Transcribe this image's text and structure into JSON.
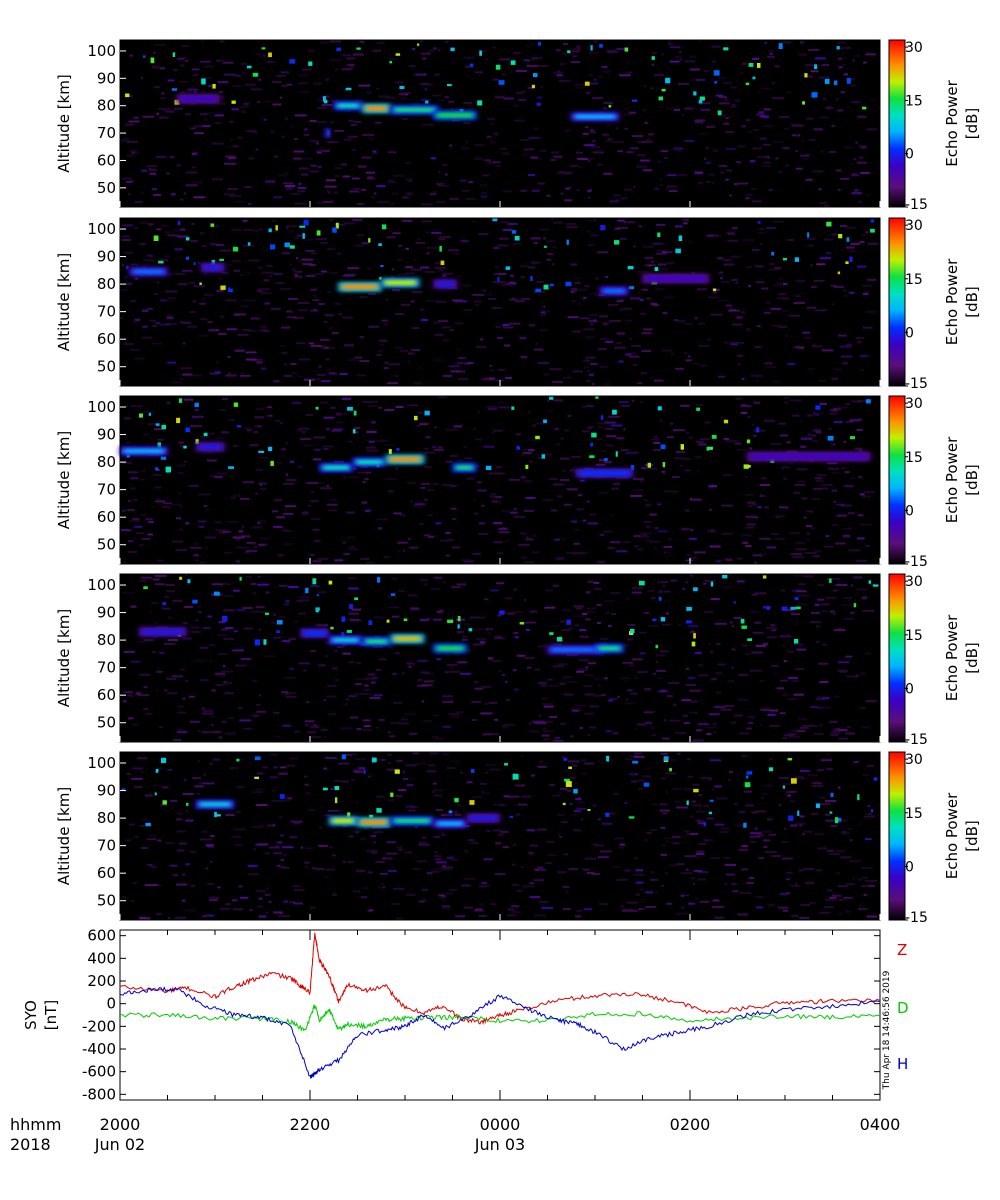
{
  "chart_data": [
    {
      "type": "heatmap",
      "ylabel": "Altitude [km]",
      "yticks": [
        50,
        60,
        70,
        80,
        90,
        100
      ],
      "ylim": [
        43,
        104
      ],
      "xlim_hours": [
        20,
        28
      ],
      "colorbar": {
        "label": "Echo Power",
        "unit": "[dB]",
        "ticks": [
          30,
          15,
          0,
          -15
        ],
        "range": [
          -15,
          32
        ]
      },
      "echo_layers": [
        {
          "t0": 20.6,
          "t1": 21.05,
          "alt": 82.5,
          "strength": 0.25
        },
        {
          "t0": 22.25,
          "t1": 22.55,
          "alt": 80.0,
          "strength": 0.55
        },
        {
          "t0": 22.55,
          "t1": 22.85,
          "alt": 79.0,
          "strength": 0.85
        },
        {
          "t0": 22.85,
          "t1": 23.35,
          "alt": 78.5,
          "strength": 0.6
        },
        {
          "t0": 23.3,
          "t1": 23.75,
          "alt": 76.5,
          "strength": 0.65
        },
        {
          "t0": 24.75,
          "t1": 25.25,
          "alt": 76.0,
          "strength": 0.45
        },
        {
          "t0": 22.15,
          "t1": 22.22,
          "alt": 70.0,
          "strength": 0.5
        }
      ]
    },
    {
      "type": "heatmap",
      "ylabel": "Altitude [km]",
      "yticks": [
        50,
        60,
        70,
        80,
        90,
        100
      ],
      "ylim": [
        43,
        104
      ],
      "xlim_hours": [
        20,
        28
      ],
      "colorbar": {
        "label": "Echo Power",
        "unit": "[dB]",
        "ticks": [
          30,
          15,
          0,
          -15
        ],
        "range": [
          -15,
          32
        ]
      },
      "echo_layers": [
        {
          "t0": 20.1,
          "t1": 20.5,
          "alt": 84.5,
          "strength": 0.4
        },
        {
          "t0": 20.85,
          "t1": 21.1,
          "alt": 86.0,
          "strength": 0.3
        },
        {
          "t0": 22.3,
          "t1": 22.75,
          "alt": 79.0,
          "strength": 0.85
        },
        {
          "t0": 22.75,
          "t1": 23.15,
          "alt": 80.5,
          "strength": 0.75
        },
        {
          "t0": 23.3,
          "t1": 23.55,
          "alt": 80.0,
          "strength": 0.3
        },
        {
          "t0": 25.05,
          "t1": 25.35,
          "alt": 77.5,
          "strength": 0.4
        },
        {
          "t0": 25.5,
          "t1": 26.2,
          "alt": 82.0,
          "strength": 0.25
        }
      ]
    },
    {
      "type": "heatmap",
      "ylabel": "Altitude [km]",
      "yticks": [
        50,
        60,
        70,
        80,
        90,
        100
      ],
      "ylim": [
        43,
        104
      ],
      "xlim_hours": [
        20,
        28
      ],
      "colorbar": {
        "label": "Echo Power",
        "unit": "[dB]",
        "ticks": [
          30,
          15,
          0,
          -15
        ],
        "range": [
          -15,
          32
        ]
      },
      "echo_layers": [
        {
          "t0": 20.0,
          "t1": 20.5,
          "alt": 84.0,
          "strength": 0.45
        },
        {
          "t0": 20.8,
          "t1": 21.1,
          "alt": 85.5,
          "strength": 0.3
        },
        {
          "t0": 22.1,
          "t1": 22.45,
          "alt": 78.0,
          "strength": 0.55
        },
        {
          "t0": 22.45,
          "t1": 22.8,
          "alt": 80.0,
          "strength": 0.55
        },
        {
          "t0": 22.8,
          "t1": 23.2,
          "alt": 81.0,
          "strength": 0.85
        },
        {
          "t0": 23.5,
          "t1": 23.75,
          "alt": 78.0,
          "strength": 0.6
        },
        {
          "t0": 24.8,
          "t1": 25.4,
          "alt": 76.0,
          "strength": 0.35
        },
        {
          "t0": 26.6,
          "t1": 27.9,
          "alt": 82.0,
          "strength": 0.25
        }
      ]
    },
    {
      "type": "heatmap",
      "ylabel": "Altitude [km]",
      "yticks": [
        50,
        60,
        70,
        80,
        90,
        100
      ],
      "ylim": [
        43,
        104
      ],
      "xlim_hours": [
        20,
        28
      ],
      "colorbar": {
        "label": "Echo Power",
        "unit": "[dB]",
        "ticks": [
          30,
          15,
          0,
          -15
        ],
        "range": [
          -15,
          32
        ]
      },
      "echo_layers": [
        {
          "t0": 20.2,
          "t1": 20.7,
          "alt": 83.0,
          "strength": 0.3
        },
        {
          "t0": 21.9,
          "t1": 22.2,
          "alt": 82.5,
          "strength": 0.35
        },
        {
          "t0": 22.2,
          "t1": 22.55,
          "alt": 80.0,
          "strength": 0.5
        },
        {
          "t0": 22.55,
          "t1": 22.85,
          "alt": 79.5,
          "strength": 0.6
        },
        {
          "t0": 22.85,
          "t1": 23.2,
          "alt": 80.5,
          "strength": 0.8
        },
        {
          "t0": 23.3,
          "t1": 23.65,
          "alt": 77.0,
          "strength": 0.65
        },
        {
          "t0": 24.5,
          "t1": 25.1,
          "alt": 76.5,
          "strength": 0.4
        },
        {
          "t0": 25.0,
          "t1": 25.3,
          "alt": 77.0,
          "strength": 0.6
        }
      ]
    },
    {
      "type": "heatmap",
      "ylabel": "Altitude [km]",
      "yticks": [
        50,
        60,
        70,
        80,
        90,
        100
      ],
      "ylim": [
        43,
        104
      ],
      "xlim_hours": [
        20,
        28
      ],
      "colorbar": {
        "label": "Echo Power",
        "unit": "[dB]",
        "ticks": [
          30,
          15,
          0,
          -15
        ],
        "range": [
          -15,
          32
        ]
      },
      "echo_layers": [
        {
          "t0": 20.8,
          "t1": 21.2,
          "alt": 85.0,
          "strength": 0.5
        },
        {
          "t0": 22.2,
          "t1": 22.5,
          "alt": 79.0,
          "strength": 0.75
        },
        {
          "t0": 22.5,
          "t1": 22.85,
          "alt": 78.5,
          "strength": 0.85
        },
        {
          "t0": 22.85,
          "t1": 23.3,
          "alt": 79.0,
          "strength": 0.6
        },
        {
          "t0": 23.3,
          "t1": 23.65,
          "alt": 78.0,
          "strength": 0.45
        },
        {
          "t0": 23.65,
          "t1": 24.0,
          "alt": 80.0,
          "strength": 0.3
        }
      ]
    },
    {
      "type": "line",
      "ylabel": "SYO",
      "yunit": "[nT]",
      "ylim": [
        -850,
        650
      ],
      "yticks": [
        600,
        400,
        200,
        0,
        -200,
        -400,
        -600,
        -800
      ],
      "xlim_hours": [
        20,
        28
      ],
      "series": [
        {
          "name": "Z",
          "color": "#dd0000",
          "t": [
            20.0,
            20.5,
            20.7,
            21.0,
            21.2,
            21.4,
            21.6,
            21.8,
            21.9,
            22.0,
            22.05,
            22.1,
            22.2,
            22.3,
            22.4,
            22.6,
            22.8,
            23.0,
            23.2,
            23.4,
            23.6,
            23.8,
            24.0,
            24.2,
            24.6,
            25.0,
            25.4,
            25.8,
            26.2,
            26.6,
            27.0,
            27.4,
            28.0
          ],
          "v": [
            150,
            110,
            140,
            60,
            150,
            210,
            270,
            220,
            160,
            100,
            620,
            380,
            250,
            20,
            170,
            120,
            150,
            -40,
            -80,
            -20,
            -140,
            -160,
            -100,
            -60,
            30,
            70,
            90,
            30,
            -80,
            -40,
            10,
            20,
            30
          ]
        },
        {
          "name": "D",
          "color": "#00cc00",
          "t": [
            20.0,
            20.5,
            21.0,
            21.5,
            21.8,
            21.95,
            22.05,
            22.1,
            22.2,
            22.3,
            22.4,
            22.6,
            22.8,
            23.0,
            23.3,
            23.6,
            24.0,
            24.5,
            25.0,
            25.5,
            26.0,
            26.5,
            27.0,
            27.5,
            28.0
          ],
          "v": [
            -100,
            -100,
            -130,
            -130,
            -160,
            -240,
            -10,
            -150,
            -50,
            -230,
            -180,
            -200,
            -140,
            -130,
            -120,
            -120,
            -150,
            -150,
            -90,
            -90,
            -150,
            -130,
            -110,
            -120,
            -110
          ]
        },
        {
          "name": "H",
          "color": "#0000cc",
          "t": [
            20.0,
            20.3,
            20.6,
            20.9,
            21.2,
            21.5,
            21.8,
            22.0,
            22.05,
            22.1,
            22.3,
            22.5,
            22.8,
            23.0,
            23.2,
            23.4,
            23.7,
            24.0,
            24.3,
            24.6,
            24.8,
            25.0,
            25.3,
            25.6,
            25.9,
            26.2,
            26.6,
            27.0,
            27.5,
            28.0
          ],
          "v": [
            80,
            120,
            130,
            -20,
            -100,
            -120,
            -200,
            -650,
            -620,
            -580,
            -500,
            -280,
            -230,
            -200,
            -100,
            -220,
            -100,
            70,
            -50,
            -150,
            -170,
            -250,
            -400,
            -300,
            -250,
            -200,
            -100,
            -50,
            -20,
            20
          ]
        }
      ]
    }
  ],
  "xaxis": {
    "row1_label": "hhmm",
    "row2_label": "2018",
    "ticks": [
      {
        "time": "2000",
        "date": "Jun 02",
        "hour": 20
      },
      {
        "time": "2200",
        "date": "",
        "hour": 22
      },
      {
        "time": "0000",
        "date": "Jun 03",
        "hour": 24
      },
      {
        "time": "0200",
        "date": "",
        "hour": 26
      },
      {
        "time": "0400",
        "date": "",
        "hour": 28
      }
    ]
  },
  "timestamp": "Thu Apr 18 14:46:56 2019",
  "legend_letters": [
    {
      "letter": "Z",
      "color": "#dd0000"
    },
    {
      "letter": "D",
      "color": "#00cc00"
    },
    {
      "letter": "H",
      "color": "#0000cc"
    }
  ]
}
